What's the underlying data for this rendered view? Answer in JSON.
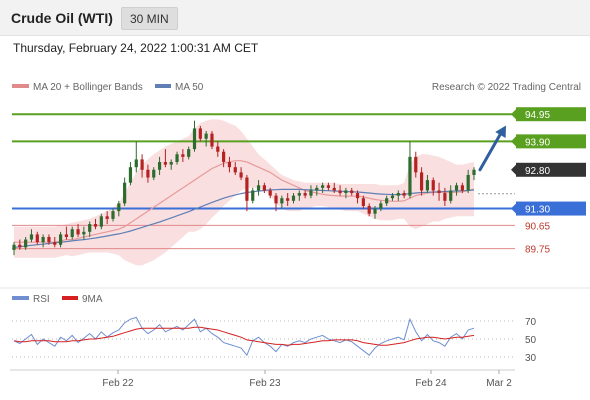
{
  "header": {
    "instrument": "Crude Oil (WTI)",
    "timeframe": "30 MIN",
    "timestamp": "Thursday, February 24, 2022 1:00:31 AM CET"
  },
  "legend": {
    "bollinger": "MA 20 + Bollinger Bands",
    "ma50": "MA 50",
    "credit": "Research © 2022 Trading Central"
  },
  "rsi_legend": {
    "rsi": "RSI",
    "ma": "9MA"
  },
  "colors": {
    "resistance": "#5aa020",
    "support": "#3a6fd8",
    "weak_support": "#e08a8a",
    "current": "#333333",
    "candle_up": "#2e6b2e",
    "candle_down": "#b52222",
    "band_fill": "#f7d4d6",
    "ma20": "#e79a9a",
    "ma50": "#5f7fb5",
    "arrow": "#2f5f9e",
    "rsi": "#6f8fd0",
    "rsi_ma": "#d42020"
  },
  "chart_data": {
    "type": "candlestick",
    "y_range": [
      89.0,
      95.5
    ],
    "x_ticks": [
      "Feb 22",
      "Feb 23",
      "Feb 24",
      "Mar 2"
    ],
    "levels": [
      {
        "value": 94.95,
        "label": "94.95",
        "kind": "resistance"
      },
      {
        "value": 93.9,
        "label": "93.90",
        "kind": "resistance"
      },
      {
        "value": 92.8,
        "label": "92.80",
        "kind": "current"
      },
      {
        "value": 91.3,
        "label": "91.30",
        "kind": "support"
      },
      {
        "value": 90.65,
        "label": "90.65",
        "kind": "weak_support"
      },
      {
        "value": 89.75,
        "label": "89.75",
        "kind": "weak_support"
      }
    ],
    "projection": {
      "from": 92.8,
      "to": 94.9
    },
    "candles": [
      [
        89.7,
        90.0,
        89.5,
        89.9
      ],
      [
        89.9,
        90.1,
        89.7,
        89.8
      ],
      [
        89.8,
        90.2,
        89.7,
        90.1
      ],
      [
        90.1,
        90.5,
        90.0,
        90.3
      ],
      [
        90.3,
        90.4,
        89.9,
        90.0
      ],
      [
        90.0,
        90.3,
        89.8,
        90.2
      ],
      [
        90.2,
        90.3,
        89.9,
        90.0
      ],
      [
        90.0,
        90.2,
        89.8,
        89.9
      ],
      [
        89.9,
        90.4,
        89.8,
        90.3
      ],
      [
        90.3,
        90.6,
        90.1,
        90.2
      ],
      [
        90.2,
        90.6,
        90.1,
        90.5
      ],
      [
        90.5,
        90.7,
        90.2,
        90.3
      ],
      [
        90.3,
        90.6,
        90.1,
        90.4
      ],
      [
        90.4,
        90.8,
        90.2,
        90.7
      ],
      [
        90.7,
        90.9,
        90.5,
        90.6
      ],
      [
        90.6,
        91.1,
        90.5,
        91.0
      ],
      [
        91.0,
        91.2,
        90.7,
        90.9
      ],
      [
        90.9,
        91.3,
        90.8,
        91.2
      ],
      [
        91.2,
        91.6,
        91.0,
        91.5
      ],
      [
        91.5,
        92.5,
        91.4,
        92.3
      ],
      [
        92.3,
        93.1,
        92.2,
        92.9
      ],
      [
        92.9,
        93.9,
        92.7,
        93.2
      ],
      [
        93.2,
        93.4,
        92.5,
        92.8
      ],
      [
        92.8,
        93.0,
        92.3,
        92.5
      ],
      [
        92.5,
        92.9,
        92.4,
        92.8
      ],
      [
        92.8,
        93.3,
        92.6,
        93.1
      ],
      [
        93.1,
        93.6,
        92.9,
        93.0
      ],
      [
        93.0,
        93.2,
        92.8,
        93.1
      ],
      [
        93.1,
        93.5,
        93.0,
        93.4
      ],
      [
        93.4,
        93.6,
        93.1,
        93.3
      ],
      [
        93.3,
        93.7,
        93.2,
        93.6
      ],
      [
        93.6,
        94.7,
        93.5,
        94.4
      ],
      [
        94.4,
        94.5,
        93.9,
        94.0
      ],
      [
        94.0,
        94.3,
        93.7,
        94.2
      ],
      [
        94.2,
        94.3,
        93.6,
        93.7
      ],
      [
        93.7,
        93.9,
        93.3,
        93.5
      ],
      [
        93.5,
        93.6,
        92.9,
        93.1
      ],
      [
        93.1,
        93.3,
        92.7,
        92.9
      ],
      [
        92.9,
        93.1,
        92.6,
        92.7
      ],
      [
        92.7,
        92.9,
        92.4,
        92.5
      ],
      [
        92.5,
        92.6,
        91.2,
        91.6
      ],
      [
        91.6,
        92.1,
        91.5,
        92.0
      ],
      [
        92.0,
        92.4,
        91.8,
        92.2
      ],
      [
        92.2,
        92.3,
        91.9,
        92.0
      ],
      [
        92.0,
        92.1,
        91.7,
        91.8
      ],
      [
        91.8,
        91.9,
        91.2,
        91.5
      ],
      [
        91.5,
        91.8,
        91.3,
        91.7
      ],
      [
        91.7,
        91.9,
        91.4,
        91.6
      ],
      [
        91.6,
        91.9,
        91.5,
        91.8
      ],
      [
        91.8,
        92.0,
        91.6,
        91.9
      ],
      [
        91.9,
        92.0,
        91.7,
        91.8
      ],
      [
        91.8,
        92.2,
        91.7,
        92.0
      ],
      [
        92.0,
        92.2,
        91.8,
        92.1
      ],
      [
        92.1,
        92.3,
        91.9,
        92.2
      ],
      [
        92.2,
        92.3,
        92.0,
        92.1
      ],
      [
        92.1,
        92.3,
        91.9,
        92.0
      ],
      [
        92.0,
        92.2,
        91.8,
        91.9
      ],
      [
        91.9,
        92.1,
        91.7,
        92.0
      ],
      [
        92.0,
        92.1,
        91.8,
        91.9
      ],
      [
        91.9,
        92.0,
        91.5,
        91.7
      ],
      [
        91.7,
        91.8,
        91.3,
        91.4
      ],
      [
        91.4,
        91.5,
        91.0,
        91.1
      ],
      [
        91.1,
        91.4,
        90.9,
        91.3
      ],
      [
        91.3,
        91.6,
        91.2,
        91.5
      ],
      [
        91.5,
        91.8,
        91.4,
        91.7
      ],
      [
        91.7,
        91.9,
        91.6,
        91.8
      ],
      [
        91.8,
        92.0,
        91.6,
        91.9
      ],
      [
        91.9,
        92.0,
        91.7,
        91.8
      ],
      [
        91.8,
        93.9,
        91.7,
        93.3
      ],
      [
        93.3,
        93.5,
        92.5,
        92.7
      ],
      [
        92.7,
        92.9,
        91.8,
        92.0
      ],
      [
        92.0,
        92.6,
        91.9,
        92.4
      ],
      [
        92.4,
        92.5,
        91.8,
        92.0
      ],
      [
        92.0,
        92.3,
        91.6,
        91.9
      ],
      [
        91.9,
        92.1,
        91.4,
        91.6
      ],
      [
        91.6,
        92.2,
        91.5,
        92.0
      ],
      [
        92.0,
        92.3,
        91.8,
        92.2
      ],
      [
        92.2,
        92.3,
        91.9,
        92.0
      ],
      [
        92.0,
        92.8,
        91.9,
        92.6
      ],
      [
        92.6,
        92.9,
        92.4,
        92.8
      ]
    ],
    "ma20": [
      90.0,
      90.0,
      90.0,
      90.0,
      90.0,
      90.0,
      90.0,
      90.0,
      90.05,
      90.1,
      90.1,
      90.15,
      90.2,
      90.25,
      90.3,
      90.35,
      90.4,
      90.45,
      90.5,
      90.6,
      90.75,
      90.9,
      91.05,
      91.2,
      91.35,
      91.5,
      91.65,
      91.8,
      91.95,
      92.1,
      92.25,
      92.4,
      92.55,
      92.7,
      92.85,
      92.95,
      93.05,
      93.1,
      93.15,
      93.15,
      93.1,
      93.0,
      92.9,
      92.8,
      92.7,
      92.55,
      92.4,
      92.3,
      92.2,
      92.1,
      92.0,
      91.95,
      91.9,
      91.85,
      91.82,
      91.8,
      91.78,
      91.78,
      91.78,
      91.78,
      91.75,
      91.7,
      91.65,
      91.62,
      91.6,
      91.58,
      91.58,
      91.6,
      91.7,
      91.8,
      91.85,
      91.9,
      91.92,
      91.93,
      91.93,
      91.92,
      91.93,
      91.95,
      92.0,
      92.05
    ],
    "ma50": [
      89.8,
      89.82,
      89.85,
      89.88,
      89.9,
      89.92,
      89.95,
      89.97,
      90.0,
      90.02,
      90.05,
      90.08,
      90.1,
      90.13,
      90.16,
      90.2,
      90.24,
      90.28,
      90.32,
      90.37,
      90.43,
      90.5,
      90.57,
      90.64,
      90.71,
      90.78,
      90.86,
      90.94,
      91.02,
      91.1,
      91.18,
      91.27,
      91.36,
      91.45,
      91.54,
      91.62,
      91.7,
      91.77,
      91.83,
      91.88,
      91.92,
      91.95,
      91.98,
      92.0,
      92.02,
      92.03,
      92.04,
      92.04,
      92.04,
      92.04,
      92.03,
      92.02,
      92.01,
      92.0,
      91.99,
      91.98,
      91.97,
      91.96,
      91.95,
      91.94,
      91.92,
      91.9,
      91.88,
      91.86,
      91.85,
      91.84,
      91.84,
      91.85,
      91.88,
      91.9,
      91.92,
      91.93,
      91.94,
      91.95,
      91.96,
      91.97,
      91.98,
      91.99,
      92.0,
      92.02
    ],
    "bollinger_upper": [
      90.6,
      90.6,
      90.6,
      90.6,
      90.6,
      90.6,
      90.6,
      90.6,
      90.65,
      90.7,
      90.75,
      90.8,
      90.85,
      90.9,
      91.0,
      91.1,
      91.2,
      91.35,
      91.5,
      91.9,
      92.3,
      92.7,
      93.0,
      93.2,
      93.4,
      93.55,
      93.7,
      93.8,
      93.9,
      94.0,
      94.1,
      94.4,
      94.6,
      94.7,
      94.75,
      94.75,
      94.7,
      94.6,
      94.5,
      94.3,
      94.0,
      93.7,
      93.4,
      93.2,
      93.0,
      92.8,
      92.6,
      92.5,
      92.4,
      92.35,
      92.3,
      92.3,
      92.3,
      92.3,
      92.3,
      92.28,
      92.25,
      92.25,
      92.25,
      92.25,
      92.25,
      92.25,
      92.25,
      92.2,
      92.2,
      92.2,
      92.2,
      92.3,
      93.0,
      93.3,
      93.4,
      93.4,
      93.35,
      93.3,
      93.2,
      93.1,
      93.0,
      93.0,
      93.05,
      93.1
    ],
    "bollinger_lower": [
      89.4,
      89.4,
      89.4,
      89.4,
      89.4,
      89.4,
      89.4,
      89.4,
      89.45,
      89.5,
      89.45,
      89.5,
      89.55,
      89.6,
      89.6,
      89.6,
      89.6,
      89.55,
      89.5,
      89.3,
      89.2,
      89.1,
      89.1,
      89.2,
      89.3,
      89.45,
      89.6,
      89.8,
      90.0,
      90.2,
      90.4,
      90.4,
      90.5,
      90.7,
      90.95,
      91.15,
      91.4,
      91.6,
      91.8,
      92.0,
      92.1,
      92.1,
      92.1,
      92.0,
      91.8,
      91.5,
      91.3,
      91.2,
      91.2,
      91.2,
      91.3,
      91.35,
      91.4,
      91.4,
      91.35,
      91.3,
      91.25,
      91.2,
      91.2,
      91.2,
      91.1,
      91.0,
      90.9,
      90.85,
      90.85,
      90.85,
      90.9,
      90.9,
      90.6,
      90.5,
      90.6,
      90.7,
      90.8,
      90.8,
      90.9,
      90.95,
      91.0,
      91.0,
      91.0,
      91.0
    ],
    "rsi_ticks": [
      70,
      50,
      30
    ],
    "rsi_range": [
      20,
      80
    ],
    "rsi": [
      48,
      45,
      50,
      55,
      44,
      50,
      46,
      42,
      52,
      48,
      54,
      46,
      51,
      56,
      50,
      58,
      52,
      57,
      60,
      68,
      72,
      74,
      62,
      56,
      60,
      66,
      58,
      61,
      64,
      60,
      66,
      72,
      58,
      62,
      56,
      52,
      46,
      44,
      42,
      40,
      32,
      48,
      52,
      46,
      42,
      36,
      44,
      42,
      46,
      48,
      46,
      50,
      52,
      54,
      50,
      48,
      46,
      49,
      47,
      42,
      37,
      32,
      40,
      45,
      48,
      50,
      52,
      49,
      72,
      58,
      48,
      55,
      48,
      46,
      42,
      52,
      56,
      50,
      60,
      62
    ],
    "rsi_ma": [
      48,
      47,
      47,
      48,
      48,
      48,
      48,
      47,
      47,
      47,
      48,
      48,
      49,
      50,
      50,
      51,
      52,
      53,
      55,
      57,
      59,
      61,
      62,
      62,
      62,
      62,
      62,
      62,
      62,
      62,
      62,
      63,
      63,
      62,
      61,
      60,
      58,
      56,
      54,
      52,
      49,
      48,
      47,
      46,
      45,
      44,
      44,
      43,
      44,
      44,
      45,
      46,
      47,
      48,
      48,
      49,
      49,
      49,
      49,
      48,
      46,
      45,
      44,
      43,
      43,
      44,
      45,
      46,
      48,
      50,
      51,
      52,
      52,
      51,
      50,
      51,
      52,
      52,
      53,
      54
    ]
  }
}
